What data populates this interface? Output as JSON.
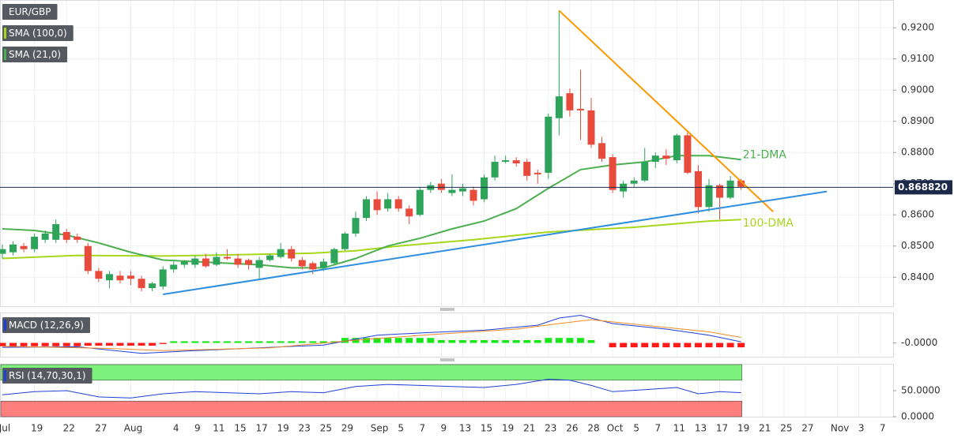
{
  "chart_data": [
    {
      "type": "candlestick",
      "symbol": "EUR/GBP",
      "up_color": "#2ea35a",
      "down_color": "#e84b3c",
      "open": [
        0.8475,
        0.848,
        0.85,
        0.849,
        0.852,
        0.852,
        0.8545,
        0.853,
        0.85,
        0.842,
        0.839,
        0.8405,
        0.8405,
        0.8395,
        0.8365,
        0.837,
        0.8425,
        0.844,
        0.844,
        0.846,
        0.844,
        0.8465,
        0.846,
        0.8455,
        0.843,
        0.8455,
        0.8465,
        0.849,
        0.8455,
        0.8445,
        0.843,
        0.8445,
        0.849,
        0.854,
        0.859,
        0.865,
        0.862,
        0.865,
        0.862,
        0.86,
        0.868,
        0.87,
        0.867,
        0.8675,
        0.868,
        0.865,
        0.872,
        0.877,
        0.8775,
        0.877,
        0.8735,
        0.8735,
        0.891,
        0.899,
        0.894,
        0.8935,
        0.883,
        0.8785,
        0.8675,
        0.87,
        0.871,
        0.877,
        0.879,
        0.8775,
        0.8855,
        0.874,
        0.8625,
        0.8695,
        0.8655,
        0.871
      ],
      "high": [
        0.8505,
        0.8515,
        0.851,
        0.854,
        0.855,
        0.8585,
        0.8555,
        0.854,
        0.851,
        0.843,
        0.842,
        0.842,
        0.842,
        0.8405,
        0.8385,
        0.8435,
        0.845,
        0.8455,
        0.847,
        0.8475,
        0.848,
        0.849,
        0.8475,
        0.846,
        0.8465,
        0.8475,
        0.851,
        0.85,
        0.8465,
        0.845,
        0.846,
        0.8495,
        0.8545,
        0.861,
        0.866,
        0.8675,
        0.867,
        0.866,
        0.863,
        0.869,
        0.8705,
        0.8715,
        0.873,
        0.87,
        0.869,
        0.873,
        0.879,
        0.879,
        0.8785,
        0.878,
        0.8745,
        0.8925,
        0.9255,
        0.9005,
        0.9065,
        0.8975,
        0.885,
        0.8795,
        0.871,
        0.872,
        0.8815,
        0.88,
        0.881,
        0.886,
        0.8865,
        0.876,
        0.8715,
        0.87,
        0.8725,
        0.8715
      ],
      "low": [
        0.846,
        0.847,
        0.848,
        0.848,
        0.851,
        0.851,
        0.851,
        0.851,
        0.841,
        0.8385,
        0.8365,
        0.838,
        0.8375,
        0.8355,
        0.8355,
        0.836,
        0.8415,
        0.843,
        0.843,
        0.843,
        0.8435,
        0.8455,
        0.843,
        0.8425,
        0.8395,
        0.845,
        0.846,
        0.845,
        0.8425,
        0.841,
        0.842,
        0.844,
        0.8485,
        0.853,
        0.858,
        0.86,
        0.861,
        0.861,
        0.857,
        0.8595,
        0.867,
        0.867,
        0.866,
        0.866,
        0.863,
        0.864,
        0.871,
        0.8765,
        0.8755,
        0.871,
        0.87,
        0.8715,
        0.8855,
        0.8915,
        0.884,
        0.8815,
        0.877,
        0.867,
        0.8655,
        0.869,
        0.8705,
        0.875,
        0.876,
        0.8765,
        0.873,
        0.8605,
        0.861,
        0.8585,
        0.865,
        0.868
      ],
      "close": [
        0.849,
        0.8505,
        0.849,
        0.853,
        0.854,
        0.857,
        0.852,
        0.852,
        0.842,
        0.8395,
        0.841,
        0.839,
        0.8395,
        0.8365,
        0.838,
        0.8425,
        0.844,
        0.845,
        0.846,
        0.8435,
        0.8465,
        0.846,
        0.844,
        0.844,
        0.8455,
        0.847,
        0.849,
        0.846,
        0.8435,
        0.8425,
        0.845,
        0.849,
        0.854,
        0.859,
        0.865,
        0.8615,
        0.865,
        0.862,
        0.8595,
        0.868,
        0.8695,
        0.868,
        0.868,
        0.8685,
        0.8645,
        0.872,
        0.877,
        0.8775,
        0.8765,
        0.8725,
        0.873,
        0.8915,
        0.898,
        0.8935,
        0.8935,
        0.8825,
        0.878,
        0.868,
        0.87,
        0.871,
        0.877,
        0.879,
        0.878,
        0.8855,
        0.8735,
        0.8625,
        0.8695,
        0.8655,
        0.871,
        0.869
      ],
      "series": [
        {
          "name": "SMA (100,0)",
          "label": "100-DMA",
          "color": "#a6d71c",
          "x": [
            0,
            7,
            15,
            22,
            29,
            33,
            37,
            44,
            51,
            59,
            66,
            69
          ],
          "values": [
            0.846,
            0.847,
            0.8468,
            0.8472,
            0.8477,
            0.8485,
            0.85,
            0.852,
            0.8545,
            0.856,
            0.858,
            0.8585
          ]
        },
        {
          "name": "SMA (21,0)",
          "label": "21-DMA",
          "color": "#4caf50",
          "x": [
            0,
            3,
            6,
            9,
            12,
            15,
            18,
            21,
            24,
            27,
            30,
            33,
            36,
            39,
            42,
            45,
            48,
            51,
            54,
            57,
            60,
            63,
            66,
            69
          ],
          "values": [
            0.8555,
            0.855,
            0.8535,
            0.851,
            0.848,
            0.8455,
            0.845,
            0.8445,
            0.844,
            0.843,
            0.843,
            0.846,
            0.85,
            0.8525,
            0.8555,
            0.858,
            0.862,
            0.8685,
            0.8745,
            0.876,
            0.877,
            0.879,
            0.879,
            0.8777
          ]
        }
      ],
      "trendlines": [
        {
          "color": "#ff9800",
          "x": [
            52,
            72
          ],
          "values": [
            0.9255,
            0.861
          ]
        },
        {
          "color": "#2e8ee0",
          "x": [
            15,
            77
          ],
          "values": [
            0.8345,
            0.8675
          ]
        }
      ],
      "last_price": {
        "value": 0.86882,
        "label": "0.868820"
      },
      "ylim": [
        0.8307,
        0.9289
      ],
      "yticks": [
        {
          "value": 0.84,
          "label": "0.8400"
        },
        {
          "value": 0.85,
          "label": "0.8500"
        },
        {
          "value": 0.86,
          "label": "0.8600"
        },
        {
          "value": 0.87,
          "label": "0.8700"
        },
        {
          "value": 0.88,
          "label": "0.8800"
        },
        {
          "value": 0.89,
          "label": "0.8900"
        },
        {
          "value": 0.9,
          "label": "0.9000"
        },
        {
          "value": 0.91,
          "label": "0.9100"
        },
        {
          "value": 0.92,
          "label": "0.9200"
        }
      ],
      "xlim": [
        -0.22,
        83.2
      ],
      "xticks": [
        {
          "value": 0,
          "label": "Jul"
        },
        {
          "value": 3,
          "label": "19"
        },
        {
          "value": 6,
          "label": "22"
        },
        {
          "value": 9,
          "label": "27"
        },
        {
          "value": 12,
          "label": "Aug"
        },
        {
          "value": 16,
          "label": "4"
        },
        {
          "value": 18,
          "label": "9"
        },
        {
          "value": 20,
          "label": "11"
        },
        {
          "value": 22,
          "label": "15"
        },
        {
          "value": 24,
          "label": "17"
        },
        {
          "value": 26,
          "label": "19"
        },
        {
          "value": 28,
          "label": "23"
        },
        {
          "value": 30,
          "label": "25"
        },
        {
          "value": 32,
          "label": "29"
        },
        {
          "value": 35,
          "label": "Sep"
        },
        {
          "value": 37,
          "label": "5"
        },
        {
          "value": 39,
          "label": "7"
        },
        {
          "value": 41,
          "label": "9"
        },
        {
          "value": 43,
          "label": "13"
        },
        {
          "value": 45,
          "label": "15"
        },
        {
          "value": 47,
          "label": "19"
        },
        {
          "value": 49,
          "label": "21"
        },
        {
          "value": 51,
          "label": "23"
        },
        {
          "value": 53,
          "label": "26"
        },
        {
          "value": 55,
          "label": "28"
        },
        {
          "value": 57,
          "label": "Oct"
        },
        {
          "value": 59,
          "label": "5"
        },
        {
          "value": 61,
          "label": "7"
        },
        {
          "value": 63,
          "label": "11"
        },
        {
          "value": 65,
          "label": "13"
        },
        {
          "value": 67,
          "label": "17"
        },
        {
          "value": 69,
          "label": "19"
        },
        {
          "value": 71,
          "label": "21"
        },
        {
          "value": 73,
          "label": "25"
        },
        {
          "value": 75,
          "label": "27"
        },
        {
          "value": 78,
          "label": "Nov"
        },
        {
          "value": 80,
          "label": "3"
        },
        {
          "value": 82,
          "label": "7"
        }
      ],
      "grid": true
    },
    {
      "type": "macd",
      "name": "MACD (12,26,9)",
      "up_color": "#19e619",
      "down_color": "#ff1a1a",
      "histogram": [
        -0.0006,
        -0.0006,
        -0.0006,
        -0.0006,
        -0.0006,
        -0.0006,
        -0.0006,
        -0.0006,
        -0.0005,
        -0.0005,
        -0.0005,
        -0.0005,
        -0.0005,
        -0.0005,
        -0.0005,
        -0.0002,
        0.0003,
        0.0003,
        0.0003,
        0.0003,
        0.0003,
        0.0003,
        0.0003,
        0.0003,
        0.0003,
        0.0003,
        0.0003,
        0.0003,
        0.0003,
        0.0003,
        0.0003,
        0.0003,
        0.0009,
        0.0009,
        0.0009,
        0.0009,
        0.0009,
        0.0009,
        0.0009,
        0.0009,
        0.0009,
        0.0005,
        0.0005,
        0.0005,
        0.0005,
        0.0005,
        0.0005,
        0.0005,
        0.0005,
        0.0005,
        0.0005,
        0.0009,
        0.0009,
        0.0009,
        0.0009,
        0.0005,
        0,
        -0.0008,
        -0.0008,
        -0.0008,
        -0.0008,
        -0.0008,
        -0.0008,
        -0.0008,
        -0.0008,
        -0.0008,
        -0.0008,
        -0.0008,
        -0.0008,
        -0.0008
      ],
      "series": [
        {
          "color": "#1f3fd6",
          "x": [
            0,
            7,
            13,
            18,
            25,
            30,
            35,
            40,
            45,
            50,
            52,
            54,
            57,
            62,
            66,
            69
          ],
          "values": [
            -0.0008,
            -0.0007,
            -0.0019,
            -0.0014,
            -0.0008,
            -0.0004,
            0.0014,
            0.0019,
            0.0023,
            0.0032,
            0.0045,
            0.005,
            0.0035,
            0.0025,
            0.0014,
            0.0002
          ]
        },
        {
          "color": "#f08a24",
          "x": [
            0,
            10,
            15,
            25,
            33,
            40,
            48,
            52,
            55,
            60,
            66,
            69
          ],
          "values": [
            -0.0006,
            -0.001,
            -0.0014,
            -0.0009,
            0.0005,
            0.0015,
            0.0025,
            0.0035,
            0.0042,
            0.0032,
            0.002,
            0.001
          ]
        }
      ],
      "ylim": [
        -0.0025,
        0.0055
      ],
      "yticks": [
        {
          "value": 0,
          "label": "-0.0000"
        }
      ]
    },
    {
      "type": "rsi",
      "name": "RSI (14,70,30,1)",
      "bands": [
        {
          "from": 70,
          "to": 100,
          "color": "#7cf27c"
        },
        {
          "from": 0,
          "to": 30,
          "color": "#ff7f7f"
        }
      ],
      "series": [
        {
          "color": "#1f3fd6",
          "x": [
            0,
            3,
            6,
            9,
            12,
            15,
            18,
            21,
            24,
            27,
            30,
            33,
            36,
            39,
            42,
            45,
            48,
            51,
            53,
            55,
            57,
            60,
            63,
            65,
            67,
            69
          ],
          "values": [
            42,
            48,
            50,
            38,
            36,
            44,
            48,
            46,
            44,
            48,
            46,
            58,
            62,
            60,
            58,
            56,
            62,
            72,
            70,
            60,
            48,
            52,
            56,
            44,
            48,
            46
          ]
        }
      ],
      "ylim": [
        0,
        100
      ],
      "yticks": [
        {
          "value": 0,
          "label": "0.0000"
        },
        {
          "value": 50,
          "label": "50.0000"
        }
      ]
    }
  ]
}
